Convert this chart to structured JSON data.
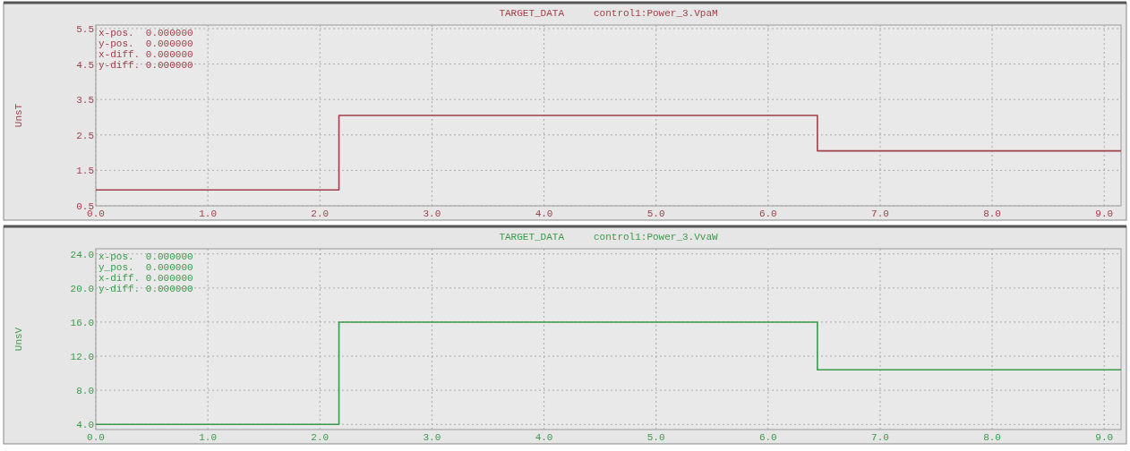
{
  "chart_data": [
    {
      "type": "step",
      "title": "TARGET_DATA     control1:Power_3.VpaM",
      "ylabel": "UnsT",
      "x": [
        0,
        2.17,
        6.44,
        9.15
      ],
      "series": [
        {
          "color": "#a0404a",
          "values": [
            0.95,
            3.05,
            2.05,
            2.05
          ]
        }
      ],
      "xlim": [
        0,
        9.15
      ],
      "ylim": [
        0.5,
        5.6
      ],
      "xticks": [
        {
          "value": 0,
          "label": "0.0"
        },
        {
          "value": 1,
          "label": "1.0"
        },
        {
          "value": 2,
          "label": "2.0"
        },
        {
          "value": 3,
          "label": "3.0"
        },
        {
          "value": 4,
          "label": "4.0"
        },
        {
          "value": 5,
          "label": "5.0"
        },
        {
          "value": 6,
          "label": "6.0"
        },
        {
          "value": 7,
          "label": "7.0"
        },
        {
          "value": 8,
          "label": "8.0"
        },
        {
          "value": 9,
          "label": "9.0"
        }
      ],
      "yticks": [
        0.5,
        1.5,
        2.5,
        3.5,
        4.5,
        5.5
      ],
      "grid": true,
      "annotations": [
        "x-pos.  0.000000",
        "y-pos.  0.000000",
        "x-diff. 0.000000",
        "y-diff. 0.000000"
      ]
    },
    {
      "type": "step",
      "title": "TARGET_DATA     control1:Power_3.VvaW",
      "ylabel": "UnsV",
      "x": [
        0,
        2.17,
        6.44,
        9.15
      ],
      "series": [
        {
          "color": "#3a9a4a",
          "values": [
            4.0,
            16.0,
            10.4,
            10.4
          ]
        }
      ],
      "xlim": [
        0,
        9.15
      ],
      "ylim": [
        3.4,
        24.6
      ],
      "xticks": [
        {
          "value": 0,
          "label": "0.0"
        },
        {
          "value": 1,
          "label": "1.0"
        },
        {
          "value": 2,
          "label": "2.0"
        },
        {
          "value": 3,
          "label": "3.0"
        },
        {
          "value": 4,
          "label": "4.0"
        },
        {
          "value": 5,
          "label": "5.0"
        },
        {
          "value": 6,
          "label": "6.0"
        },
        {
          "value": 7,
          "label": "7.0"
        },
        {
          "value": 8,
          "label": "8.0"
        },
        {
          "value": 9,
          "label": "9.0"
        }
      ],
      "yticks": [
        {
          "value": 4,
          "label": "4.0"
        },
        {
          "value": 8,
          "label": "8.0"
        },
        {
          "value": 12,
          "label": "12.0"
        },
        {
          "value": 16,
          "label": "16.0"
        },
        {
          "value": 20,
          "label": "20.0"
        },
        {
          "value": 24,
          "label": "24.0"
        }
      ],
      "grid": true,
      "annotations": [
        "x-pos.  0.000000",
        "y_pos.  0.000000",
        "x-diff. 0.000000",
        "y-diff. 0.000000"
      ]
    }
  ]
}
